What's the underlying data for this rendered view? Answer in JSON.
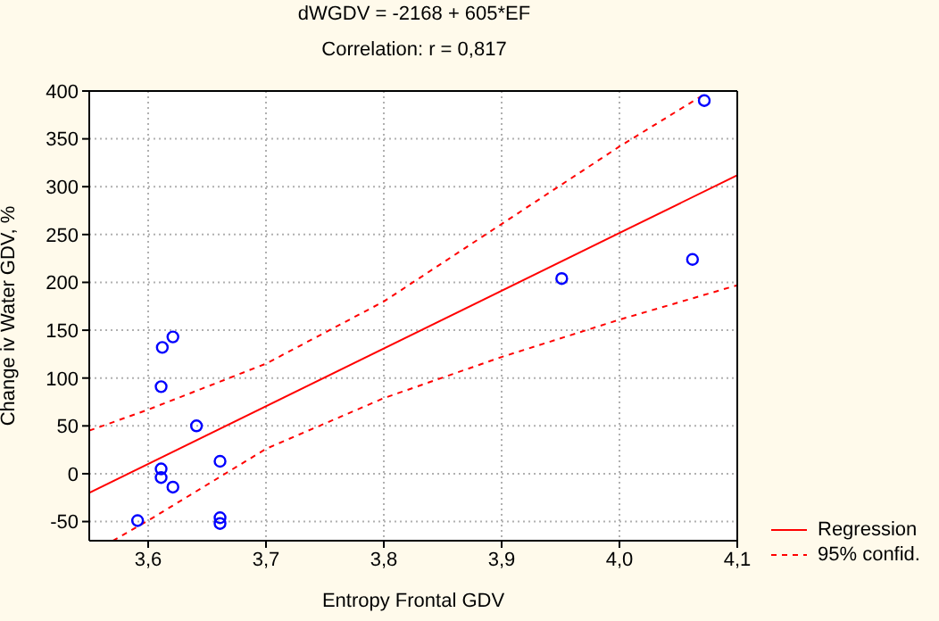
{
  "chart_data": {
    "type": "scatter",
    "title": "dWGDV = -2168 + 605*EF",
    "subtitle": "Correlation: r = 0,817",
    "xlabel": "Entropy Frontal GDV",
    "ylabel": "Change iv Water GDV, %",
    "series": [
      {
        "color": "#0000ff",
        "marker": "circle",
        "x": [
          3.612,
          3.621,
          3.611,
          3.641,
          3.611,
          3.611,
          3.621,
          3.661,
          3.591,
          3.661,
          3.661,
          4.072,
          3.951,
          4.062
        ],
        "values": [
          132,
          143,
          91,
          50,
          5,
          -4,
          -14,
          13,
          -49,
          -46,
          -52,
          390,
          204,
          224
        ]
      },
      {
        "type": "line",
        "name": "Regression",
        "color": "#ff0000",
        "line_style": "solid",
        "marker": "none",
        "x": [
          3.55,
          4.1
        ],
        "values": [
          -20,
          312
        ]
      },
      {
        "type": "line",
        "name": "95% confid.",
        "color": "#ff0000",
        "line_style": "dashed",
        "marker": "none",
        "x": [
          3.55,
          3.6,
          3.7,
          3.8,
          3.9,
          4.0,
          4.07
        ],
        "values": [
          45,
          67,
          115,
          180,
          261,
          342,
          395
        ]
      },
      {
        "type": "line",
        "color": "#ff0000",
        "line_style": "dashed",
        "marker": "none",
        "x": [
          3.57,
          3.6,
          3.7,
          3.8,
          3.9,
          4.0,
          4.1
        ],
        "values": [
          -70,
          -49,
          26,
          79,
          122,
          161,
          197
        ]
      }
    ],
    "xlim": [
      3.55,
      4.1
    ],
    "xticks": [
      {
        "value": 3.6,
        "label": "3,6"
      },
      {
        "value": 3.7,
        "label": "3,7"
      },
      {
        "value": 3.8,
        "label": "3,8"
      },
      {
        "value": 3.9,
        "label": "3,9"
      },
      {
        "value": 4.0,
        "label": "4,0"
      },
      {
        "value": 4.1,
        "label": "4,1"
      }
    ],
    "ylim": [
      -70,
      400
    ],
    "yticks": [
      -50,
      0,
      50,
      100,
      150,
      200,
      250,
      300,
      350,
      400
    ],
    "grid": true,
    "legend": "bottom right"
  }
}
